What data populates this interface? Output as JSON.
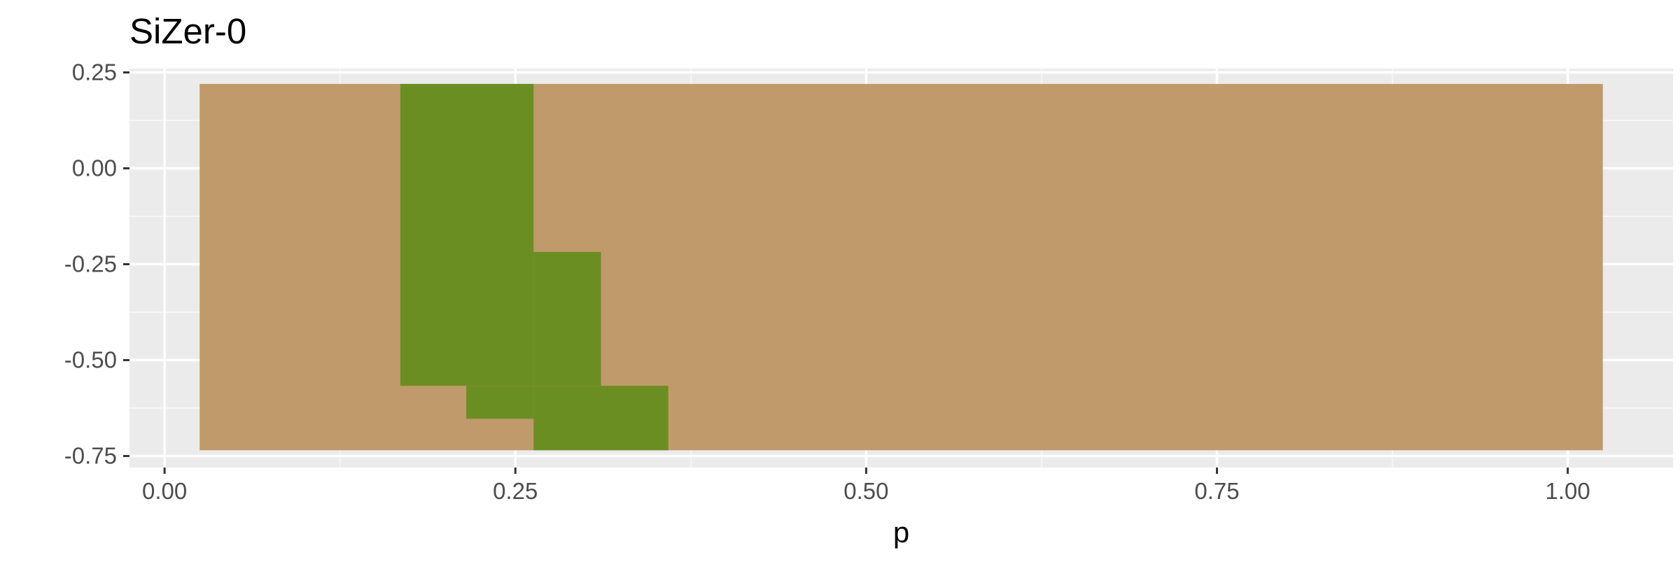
{
  "chart_data": {
    "type": "heatmap",
    "title": "SiZer-0",
    "xlabel": "p",
    "ylabel": "",
    "xlim": [
      -0.025,
      1.075
    ],
    "ylim": [
      -0.78,
      0.26
    ],
    "x_ticks": [
      0.0,
      0.25,
      0.5,
      0.75,
      1.0
    ],
    "x_tick_labels": [
      "0.00",
      "0.25",
      "0.50",
      "0.75",
      "1.00"
    ],
    "y_ticks": [
      -0.75,
      -0.5,
      -0.25,
      0.0,
      0.25
    ],
    "y_tick_labels": [
      "-0.75",
      "-0.50",
      "-0.25",
      "0.00",
      "0.25"
    ],
    "grid": true,
    "legend": "none",
    "colors": {
      "panel_background": "#ebebeb",
      "grid_major": "#ffffff",
      "grid_minor": "#f5f5f5",
      "not_significant": "#c19a6b",
      "significant": "#6b8e23"
    },
    "cells": [
      {
        "x0": 0.025,
        "x1": 1.025,
        "y0": -0.735,
        "y1": 0.22,
        "status": "not_significant"
      },
      {
        "x0": 0.168,
        "x1": 0.263,
        "y0": -0.567,
        "y1": 0.22,
        "status": "significant"
      },
      {
        "x0": 0.263,
        "x1": 0.311,
        "y0": -0.567,
        "y1": -0.218,
        "status": "significant"
      },
      {
        "x0": 0.215,
        "x1": 0.263,
        "y0": -0.653,
        "y1": -0.567,
        "status": "significant"
      },
      {
        "x0": 0.263,
        "x1": 0.359,
        "y0": -0.735,
        "y1": -0.567,
        "status": "significant"
      }
    ]
  }
}
